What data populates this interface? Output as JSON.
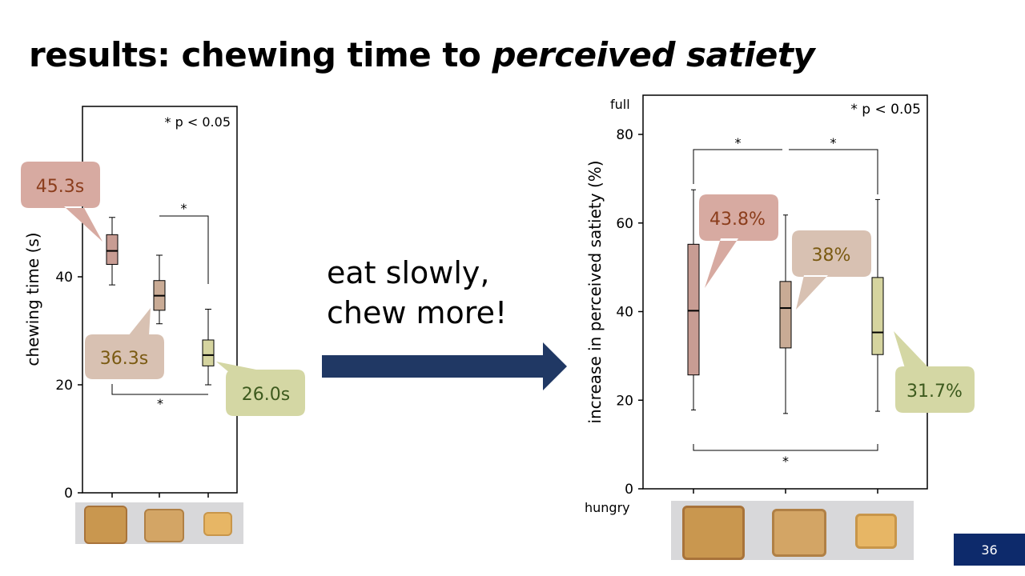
{
  "title": {
    "prefix": "results: chewing time to ",
    "emphasis": "perceived satiety"
  },
  "middle": {
    "line1": "eat slowly,",
    "line2": "chew more!"
  },
  "page_number": "36",
  "colors": {
    "box1": "#c89c93",
    "box2": "#c9ab95",
    "box3": "#d5d49f",
    "callout1": "#d7aaa1",
    "callout2": "#d8c1b2",
    "callout3": "#d4d7a4",
    "text1": "#8b3d1c",
    "text2": "#7a5a12",
    "text3": "#3d5a1e",
    "badge": "#0d2a6b"
  },
  "chart_data": [
    {
      "type": "box",
      "ylabel": "chewing time (s)",
      "yticks": [
        0,
        20,
        40
      ],
      "ylim": [
        0,
        72
      ],
      "annotation": "* p < 0.05",
      "series": [
        {
          "min": 38.5,
          "q1": 42.3,
          "median": 44.8,
          "q3": 47.8,
          "max": 51,
          "callout": "45.3s"
        },
        {
          "min": 31.3,
          "q1": 33.8,
          "median": 36.5,
          "q3": 39.3,
          "max": 44,
          "callout": "36.3s"
        },
        {
          "min": 20,
          "q1": 23.5,
          "median": 25.5,
          "q3": 28.3,
          "max": 34,
          "callout": "26.0s"
        }
      ],
      "significance": [
        {
          "from": 1,
          "to": 2,
          "label": "*",
          "side": "top"
        },
        {
          "from": 0,
          "to": 2,
          "label": "*",
          "side": "bottom"
        }
      ]
    },
    {
      "type": "box",
      "ylabel": "increase in perceived satiety (%)",
      "yticks": [
        0,
        20,
        40,
        60,
        80
      ],
      "ylim": [
        0,
        89
      ],
      "top_label": "full",
      "bottom_label": "hungry",
      "annotation": "* p < 0.05",
      "series": [
        {
          "min": 17.8,
          "q1": 25.7,
          "median": 40.2,
          "q3": 55.2,
          "max": 67.5,
          "callout": "43.8%"
        },
        {
          "min": 17,
          "q1": 31.8,
          "median": 40.8,
          "q3": 46.8,
          "max": 61.8,
          "callout": "38%"
        },
        {
          "min": 17.5,
          "q1": 30.3,
          "median": 35.3,
          "q3": 47.7,
          "max": 65.3,
          "callout": "31.7%"
        }
      ],
      "significance": [
        {
          "from": 0,
          "to": 1,
          "label": "*",
          "side": "top"
        },
        {
          "from": 1,
          "to": 2,
          "label": "*",
          "side": "top"
        },
        {
          "from": 0,
          "to": 2,
          "label": "*",
          "side": "bottom"
        }
      ]
    }
  ]
}
